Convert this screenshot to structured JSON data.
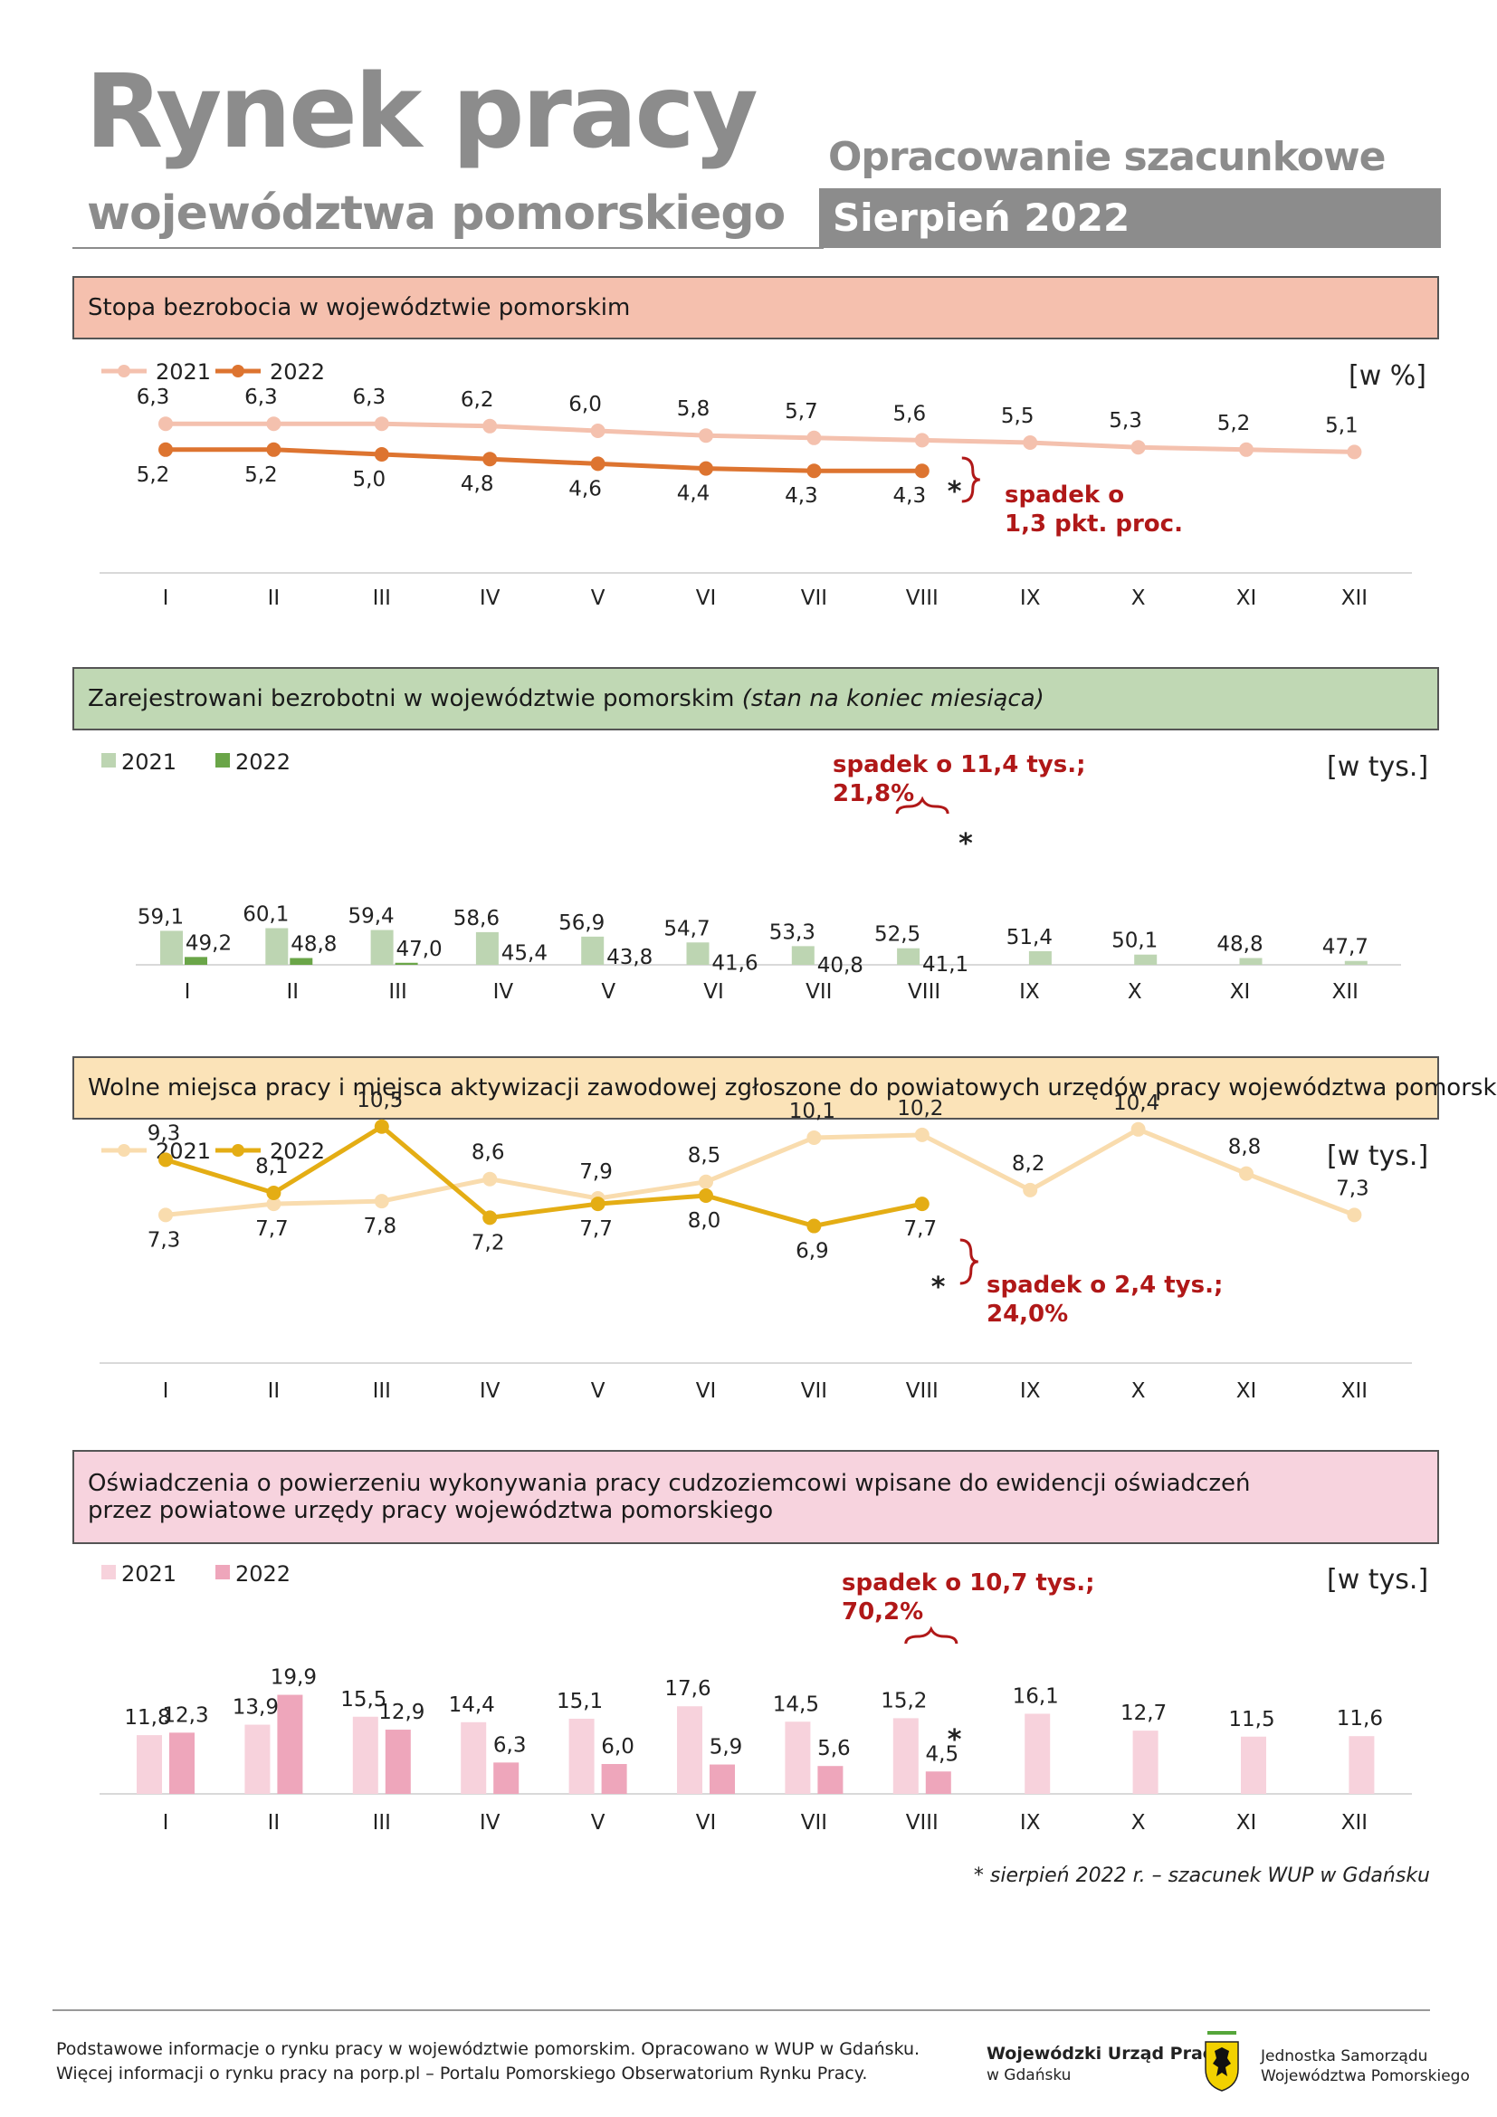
{
  "header": {
    "title": "Rynek pracy",
    "subtitle": "województwa pomorskiego",
    "estimate_label": "Opracowanie szacunkowe",
    "month_label": "Sierpień 2022",
    "gray": "#8c8c8c"
  },
  "months": [
    "I",
    "II",
    "III",
    "IV",
    "V",
    "VI",
    "VII",
    "VIII",
    "IX",
    "X",
    "XI",
    "XII"
  ],
  "chart_data": [
    {
      "type": "line",
      "title": "Stopa bezrobocia w województwie pomorskim",
      "unit": "[w %]",
      "header_bg": "#f5c0ae",
      "series": [
        {
          "name": "2021",
          "color": "#f4c1ae",
          "values": [
            6.3,
            6.3,
            6.3,
            6.2,
            6.0,
            5.8,
            5.7,
            5.6,
            5.5,
            5.3,
            5.2,
            5.1
          ],
          "labels": [
            "6,3",
            "6,3",
            "6,3",
            "6,2",
            "6,0",
            "5,8",
            "5,7",
            "5,6",
            "5,5",
            "5,3",
            "5,2",
            "5,1"
          ]
        },
        {
          "name": "2022",
          "color": "#dd7430",
          "values": [
            5.2,
            5.2,
            5.0,
            4.8,
            4.6,
            4.4,
            4.3,
            4.3
          ],
          "labels": [
            "5,2",
            "5,2",
            "5,0",
            "4,8",
            "4,6",
            "4,4",
            "4,3",
            "4,3"
          ]
        }
      ],
      "annotation": [
        "spadek o",
        "1,3 pkt. proc."
      ],
      "estimate_marker": "*"
    },
    {
      "type": "bar",
      "title": "Zarejestrowani bezrobotni w województwie pomorskim",
      "title_note": "(stan na koniec miesiąca)",
      "unit": "[w tys.]",
      "header_bg": "#c0d8b4",
      "series": [
        {
          "name": "2021",
          "color": "#bdd5b2",
          "values": [
            59.1,
            60.1,
            59.4,
            58.6,
            56.9,
            54.7,
            53.3,
            52.5,
            51.4,
            50.1,
            48.8,
            47.7
          ],
          "labels": [
            "59,1",
            "60,1",
            "59,4",
            "58,6",
            "56,9",
            "54,7",
            "53,3",
            "52,5",
            "51,4",
            "50,1",
            "48,8",
            "47,7"
          ]
        },
        {
          "name": "2022",
          "color": "#6aa548",
          "values": [
            49.2,
            48.8,
            47.0,
            45.4,
            43.8,
            41.6,
            40.8,
            41.1
          ],
          "labels": [
            "49,2",
            "48,8",
            "47,0",
            "45,4",
            "43,8",
            "41,6",
            "40,8",
            "41,1"
          ]
        }
      ],
      "annotation": [
        "spadek o 11,4 tys.;",
        "21,8%"
      ],
      "estimate_marker": "*"
    },
    {
      "type": "line",
      "title": "Wolne miejsca pracy i miejsca aktywizacji zawodowej zgłoszone do powiatowych urzędów pracy województwa pomorskiego",
      "unit": "[w tys.]",
      "header_bg": "#fbe3b8",
      "series": [
        {
          "name": "2021",
          "color": "#f9dcae",
          "values": [
            7.3,
            7.7,
            7.8,
            8.6,
            7.9,
            8.5,
            10.1,
            10.2,
            8.2,
            10.4,
            8.8,
            7.3
          ],
          "labels": [
            "7,3",
            "7,7",
            "7,8",
            "8,6",
            "7,9",
            "8,5",
            "10,1",
            "10,2",
            "8,2",
            "10,4",
            "8,8",
            "7,3"
          ]
        },
        {
          "name": "2022",
          "color": "#e4ad14",
          "values": [
            9.3,
            8.1,
            10.5,
            7.2,
            7.7,
            8.0,
            6.9,
            7.7
          ],
          "labels": [
            "9,3",
            "8,1",
            "10,5",
            "7,2",
            "7,7",
            "8,0",
            "6,9",
            "7,7"
          ]
        }
      ],
      "annotation": [
        "spadek o 2,4 tys.;",
        "24,0%"
      ],
      "estimate_marker": "*"
    },
    {
      "type": "bar",
      "title": "Oświadczenia o powierzeniu wykonywania pracy cudzoziemcowi wpisane do ewidencji oświadczeń",
      "title_line2": "przez powiatowe urzędy pracy województwa pomorskiego",
      "unit": "[w tys.]",
      "header_bg": "#f7d3de",
      "series": [
        {
          "name": "2021",
          "color": "#f7d2dc",
          "values": [
            11.8,
            13.9,
            15.5,
            14.4,
            15.1,
            17.6,
            14.5,
            15.2,
            16.1,
            12.7,
            11.5,
            11.6
          ],
          "labels": [
            "11,8",
            "13,9",
            "15,5",
            "14,4",
            "15,1",
            "17,6",
            "14,5",
            "15,2",
            "16,1",
            "12,7",
            "11,5",
            "11,6"
          ]
        },
        {
          "name": "2022",
          "color": "#eea6bb",
          "values": [
            12.3,
            19.9,
            12.9,
            6.3,
            6.0,
            5.9,
            5.6,
            4.5
          ],
          "labels": [
            "12,3",
            "19,9",
            "12,9",
            "6,3",
            "6,0",
            "5,9",
            "5,6",
            "4,5"
          ]
        }
      ],
      "annotation": [
        "spadek o 10,7 tys.;",
        "70,2%"
      ],
      "estimate_marker": "*"
    }
  ],
  "annotation_color": "#b01818",
  "footnote": "* sierpień 2022 r. – szacunek WUP w Gdańsku",
  "footer": {
    "line1": "Podstawowe informacje o rynku pracy w województwie pomorskim. Opracowano w WUP w Gdańsku.",
    "line2": "Więcej informacji o rynku pracy na porp.pl – Portalu Pomorskiego Obserwatorium Rynku Pracy.",
    "wup_name": "Wojewódzki Urząd Pracy",
    "wup_city": "w Gdańsku",
    "js_line1": "Jednostka Samorządu",
    "js_line2": "Województwa Pomorskiego"
  }
}
